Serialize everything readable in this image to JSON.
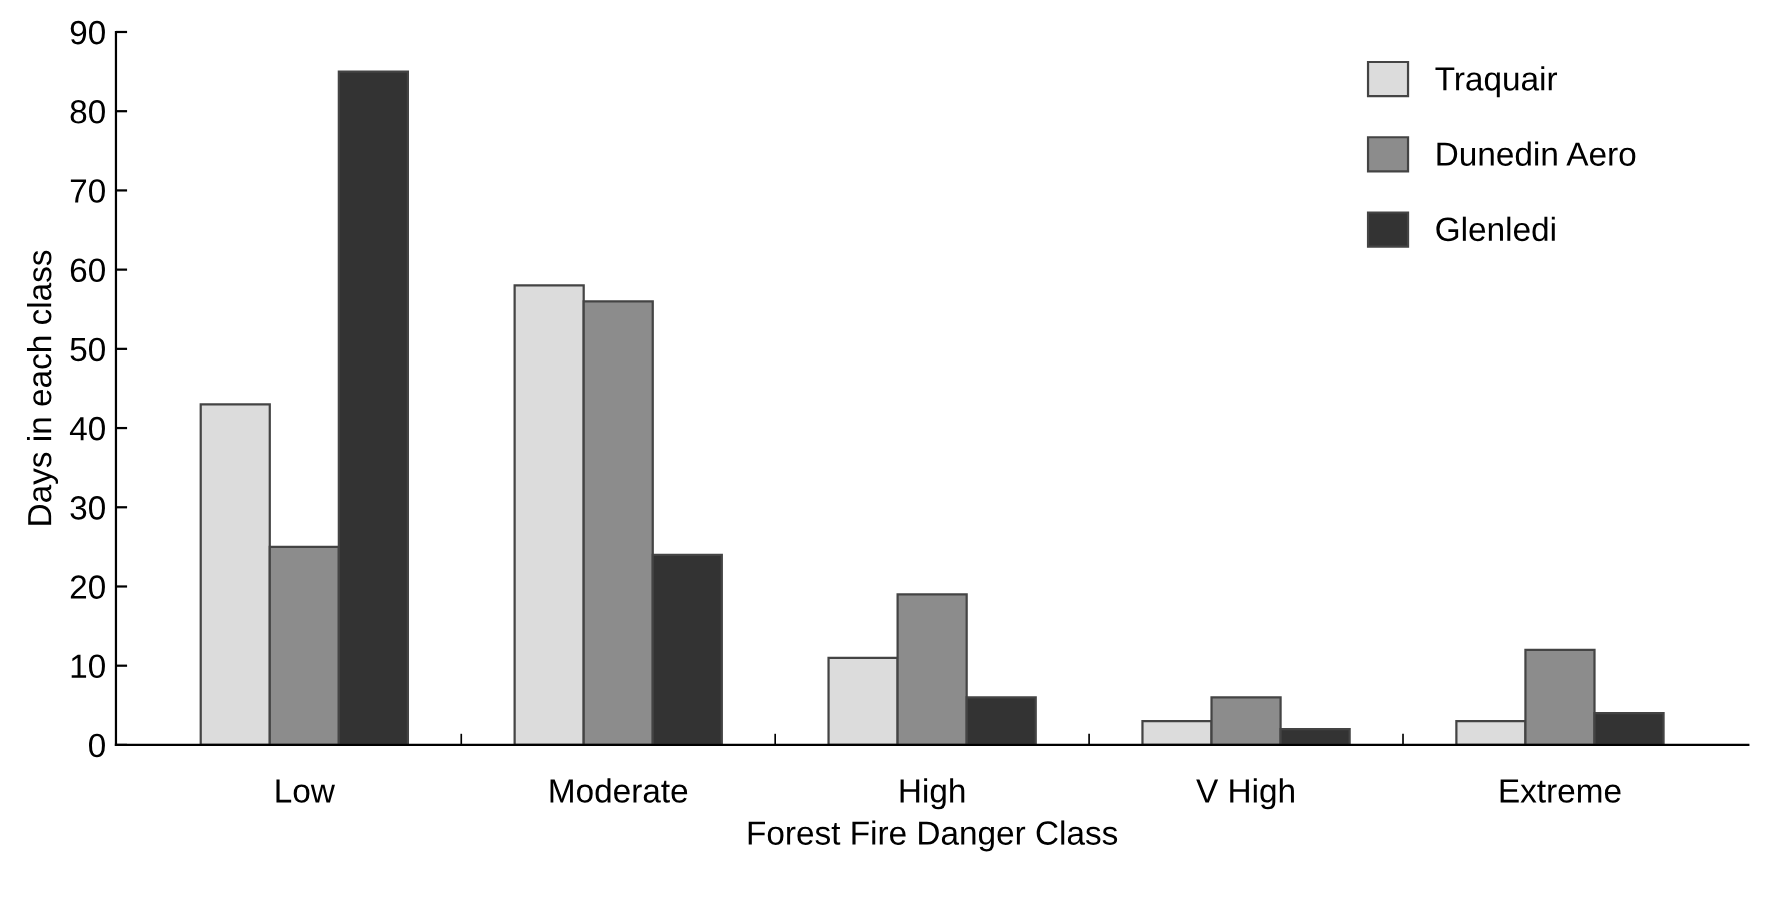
{
  "chart_data": {
    "type": "bar",
    "xlabel": "Forest Fire Danger Class",
    "ylabel": "Days in each class",
    "categories": [
      "Low",
      "Moderate",
      "High",
      "V High",
      "Extreme"
    ],
    "series": [
      {
        "name": "Traquair",
        "color": "#dcdcdc",
        "values": [
          43,
          58,
          11,
          3,
          3
        ]
      },
      {
        "name": "Dunedin Aero",
        "color": "#8c8c8c",
        "values": [
          25,
          56,
          19,
          6,
          12
        ]
      },
      {
        "name": "Glenledi",
        "color": "#333333",
        "values": [
          85,
          24,
          6,
          2,
          4
        ]
      }
    ],
    "ylim": [
      0,
      90
    ],
    "yticks": [
      0,
      10,
      20,
      30,
      40,
      50,
      60,
      70,
      80,
      90
    ],
    "grid": false,
    "legend": "top right"
  }
}
